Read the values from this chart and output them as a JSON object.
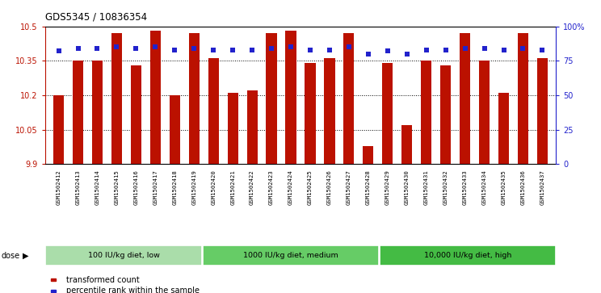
{
  "title": "GDS5345 / 10836354",
  "samples": [
    "GSM1502412",
    "GSM1502413",
    "GSM1502414",
    "GSM1502415",
    "GSM1502416",
    "GSM1502417",
    "GSM1502418",
    "GSM1502419",
    "GSM1502420",
    "GSM1502421",
    "GSM1502422",
    "GSM1502423",
    "GSM1502424",
    "GSM1502425",
    "GSM1502426",
    "GSM1502427",
    "GSM1502428",
    "GSM1502429",
    "GSM1502430",
    "GSM1502431",
    "GSM1502432",
    "GSM1502433",
    "GSM1502434",
    "GSM1502435",
    "GSM1502436",
    "GSM1502437"
  ],
  "red_values": [
    10.2,
    10.35,
    10.35,
    10.47,
    10.33,
    10.48,
    10.2,
    10.47,
    10.36,
    10.21,
    10.22,
    10.47,
    10.48,
    10.34,
    10.36,
    10.47,
    9.98,
    10.34,
    10.07,
    10.35,
    10.33,
    10.47,
    10.35,
    10.21,
    10.47,
    10.36
  ],
  "blue_values": [
    82,
    84,
    84,
    85,
    84,
    85,
    83,
    84,
    83,
    83,
    83,
    84,
    85,
    83,
    83,
    85,
    80,
    82,
    80,
    83,
    83,
    84,
    84,
    83,
    84,
    83
  ],
  "ymin": 9.9,
  "ymax": 10.5,
  "ylim_left": [
    9.9,
    10.5
  ],
  "ylim_right": [
    0,
    100
  ],
  "yticks_left": [
    9.9,
    10.05,
    10.2,
    10.35,
    10.5
  ],
  "ytick_labels_left": [
    "9.9",
    "10.05",
    "10.2",
    "10.35",
    "10.5"
  ],
  "yticks_right": [
    0,
    25,
    50,
    75,
    100
  ],
  "ytick_labels_right": [
    "0",
    "25",
    "50",
    "75",
    "100%"
  ],
  "groups": [
    {
      "label": "100 IU/kg diet, low",
      "start": 0,
      "end": 8,
      "color": "#aaddaa"
    },
    {
      "label": "1000 IU/kg diet, medium",
      "start": 8,
      "end": 17,
      "color": "#66cc66"
    },
    {
      "label": "10,000 IU/kg diet, high",
      "start": 17,
      "end": 26,
      "color": "#44bb44"
    }
  ],
  "bar_color": "#bb1100",
  "dot_color": "#2222cc",
  "legend_items": [
    {
      "label": "transformed count",
      "color": "#bb1100"
    },
    {
      "label": "percentile rank within the sample",
      "color": "#2222cc"
    }
  ]
}
